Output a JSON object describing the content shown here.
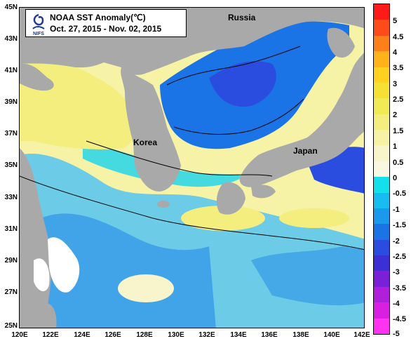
{
  "map": {
    "title": "NOAA SST Anomaly(℃)",
    "subtitle": "Oct. 27, 2015 - Nov. 02, 2015",
    "logo_text": "NIFS",
    "places": [
      "Russia",
      "Korea",
      "Japan"
    ],
    "lat_ticks": [
      "45N",
      "43N",
      "41N",
      "39N",
      "37N",
      "35N",
      "33N",
      "31N",
      "29N",
      "27N",
      "25N"
    ],
    "lon_ticks": [
      "120E",
      "122E",
      "124E",
      "126E",
      "128E",
      "130E",
      "132E",
      "134E",
      "136E",
      "138E",
      "140E",
      "142E"
    ],
    "colors": {
      "land": "#a9a9a9",
      "no_data": "#ffffff"
    }
  },
  "legend": {
    "labels": [
      "5",
      "4.5",
      "4",
      "3.5",
      "3",
      "2.5",
      "2",
      "1.5",
      "1",
      "0.5",
      "0",
      "-0.5",
      "-1",
      "-1.5",
      "-2",
      "-2.5",
      "-3",
      "-3.5",
      "-4",
      "-4.5",
      "-5"
    ],
    "colors": [
      "#ff1a1a",
      "#ff4a1a",
      "#ff7f1a",
      "#ffb31a",
      "#ffd21f",
      "#f5e133",
      "#f0ea55",
      "#f4ee7e",
      "#f6f2a6",
      "#f8f4cc",
      "#f9f7e2",
      "#14e0ec",
      "#17bdf0",
      "#1b99ec",
      "#1b74e6",
      "#2a4ddf",
      "#3d2fd6",
      "#7a20d8",
      "#b020db",
      "#d91fe0",
      "#ff33f0"
    ]
  }
}
